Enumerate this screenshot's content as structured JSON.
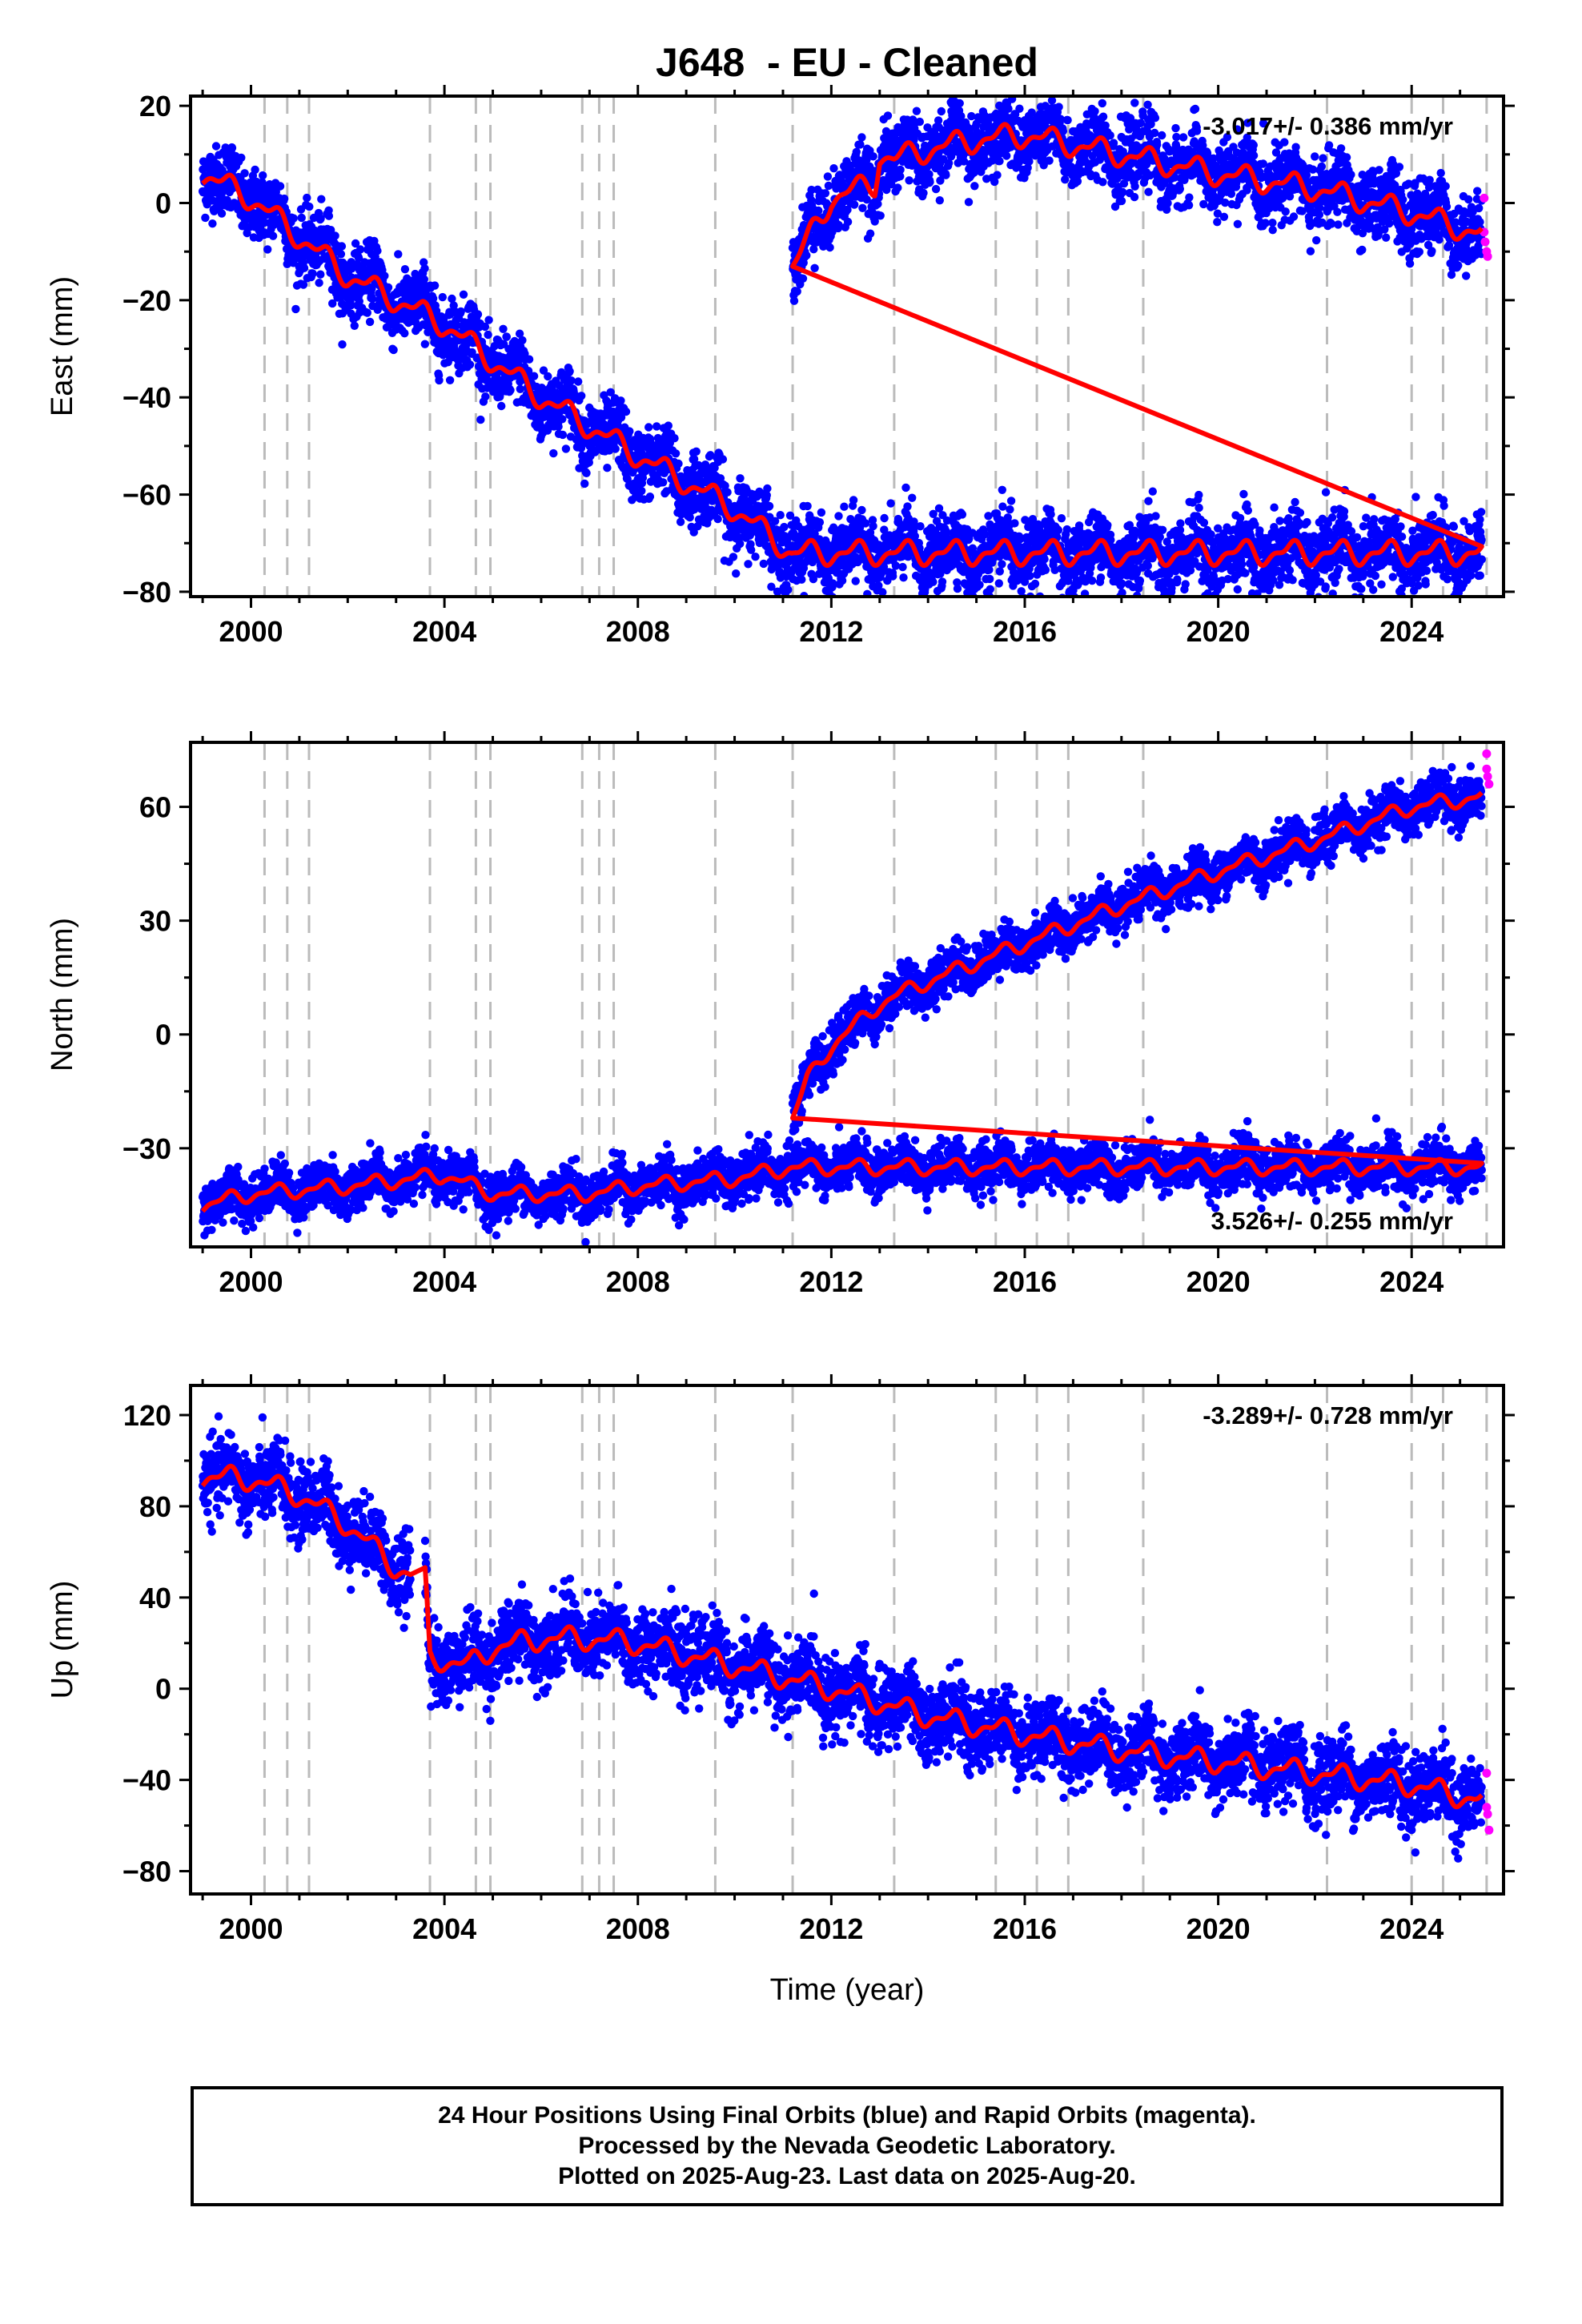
{
  "title": "J648  - EU - Cleaned",
  "xlabel": "Time (year)",
  "footer": {
    "line1": "24 Hour Positions Using Final Orbits (blue) and Rapid Orbits (magenta).",
    "line2": "Processed by the Nevada Geodetic Laboratory.",
    "line3": "Plotted on 2025-Aug-23. Last data on 2025-Aug-20."
  },
  "colors": {
    "final": "#0000ff",
    "rapid": "#ff00ff",
    "model": "#ff0000",
    "event_lines": "#bbbbbb"
  },
  "chart_data": [
    {
      "type": "scatter",
      "ylabel": "East (mm)",
      "rate": "-3.017+/- 0.386 mm/yr",
      "rate_position": "top-right",
      "xlim": [
        1998.75,
        2025.9
      ],
      "ylim": [
        -81,
        22
      ],
      "xticks": [
        2000,
        2004,
        2008,
        2012,
        2016,
        2020,
        2024
      ],
      "yticks": [
        -80,
        -60,
        -40,
        -20,
        0,
        20
      ],
      "scatter_spread_mm": 3.5,
      "series": [
        {
          "name": "Final Orbits (blue)",
          "x_start": 1999.0,
          "x_end": 2025.45,
          "model_knots": [
            [
              1999.0,
              6
            ],
            [
              2000.0,
              1
            ],
            [
              2002.0,
              -15
            ],
            [
              2004.0,
              -25
            ],
            [
              2006.0,
              -40
            ],
            [
              2008.0,
              -52
            ],
            [
              2010.0,
              -63
            ],
            [
              2011.18,
              -72
            ]
          ]
        },
        {
          "name": "Final Orbits (blue)",
          "x_start": 2011.2,
          "x_end": 2025.45,
          "model_knots": [
            [
              2011.2,
              -13
            ],
            [
              2011.5,
              -8
            ],
            [
              2012.0,
              1
            ],
            [
              2012.9,
              4
            ],
            [
              2013.0,
              10
            ],
            [
              2013.3,
              9
            ],
            [
              2014.0,
              11
            ],
            [
              2015.0,
              13
            ],
            [
              2016.0,
              14
            ],
            [
              2018.0,
              10
            ],
            [
              2020.0,
              6
            ],
            [
              2022.0,
              3
            ],
            [
              2024.0,
              -2
            ],
            [
              2025.6,
              -7
            ]
          ]
        },
        {
          "name": "Rapid Orbits (magenta)",
          "points": [
            [
              2025.5,
              1
            ],
            [
              2025.5,
              -6
            ],
            [
              2025.52,
              -8
            ],
            [
              2025.55,
              -10
            ],
            [
              2025.57,
              -11
            ]
          ]
        }
      ],
      "steps_model": [
        [
          2011.18,
          -72
        ],
        [
          2011.2,
          -13
        ]
      ],
      "seasonal_amplitude_mm": 2.5
    },
    {
      "type": "scatter",
      "ylabel": "North (mm)",
      "rate": "3.526+/- 0.255 mm/yr",
      "rate_position": "bottom-right",
      "xlim": [
        1998.75,
        2025.9
      ],
      "ylim": [
        -56,
        77
      ],
      "xticks": [
        2000,
        2004,
        2008,
        2012,
        2016,
        2020,
        2024
      ],
      "yticks": [
        -30,
        0,
        30,
        60
      ],
      "scatter_spread_mm": 3.0,
      "series": [
        {
          "name": "Final Orbits (blue)",
          "x_start": 1999.0,
          "x_end": 2025.45,
          "model_knots": [
            [
              1999.0,
              -45
            ],
            [
              2000.0,
              -42
            ],
            [
              2002.0,
              -40
            ],
            [
              2004.0,
              -37
            ],
            [
              2005.0,
              -42
            ],
            [
              2007.0,
              -42
            ],
            [
              2008.0,
              -40
            ],
            [
              2010.0,
              -38
            ],
            [
              2011.18,
              -35
            ]
          ]
        },
        {
          "name": "Final Orbits (blue)",
          "x_start": 2011.2,
          "x_end": 2025.45,
          "model_knots": [
            [
              2011.2,
              -22
            ],
            [
              2011.5,
              -12
            ],
            [
              2012.0,
              -3
            ],
            [
              2013.0,
              8
            ],
            [
              2013.3,
              10
            ],
            [
              2014.0,
              14
            ],
            [
              2016.0,
              24
            ],
            [
              2018.0,
              34
            ],
            [
              2020.0,
              43
            ],
            [
              2022.0,
              51
            ],
            [
              2024.0,
              60
            ],
            [
              2025.6,
              63
            ]
          ]
        },
        {
          "name": "Rapid Orbits (magenta)",
          "points": [
            [
              2025.55,
              74
            ],
            [
              2025.55,
              70
            ],
            [
              2025.57,
              68
            ],
            [
              2025.6,
              66
            ]
          ]
        }
      ],
      "steps_model": [
        [
          2011.18,
          -35
        ],
        [
          2011.2,
          -22
        ]
      ],
      "seasonal_amplitude_mm": 2.0
    },
    {
      "type": "scatter",
      "ylabel": "Up (mm)",
      "rate": "-3.289+/- 0.728 mm/yr",
      "rate_position": "top-right",
      "xlim": [
        1998.75,
        2025.9
      ],
      "ylim": [
        -90,
        133
      ],
      "xticks": [
        2000,
        2004,
        2008,
        2012,
        2016,
        2020,
        2024
      ],
      "yticks": [
        -80,
        -40,
        0,
        40,
        80,
        120
      ],
      "scatter_spread_mm": 8.0,
      "series": [
        {
          "name": "Final Orbits (blue)",
          "x_start": 1999.0,
          "x_end": 2003.3,
          "model_knots": [
            [
              1999.0,
              93
            ],
            [
              2000.0,
              92
            ],
            [
              2001.0,
              85
            ],
            [
              2002.0,
              72
            ],
            [
              2003.0,
              53
            ],
            [
              2003.3,
              50
            ]
          ]
        },
        {
          "name": "Final Orbits (blue)",
          "x_start": 2003.6,
          "x_end": 2025.45,
          "model_knots": [
            [
              2003.6,
              48
            ],
            [
              2003.7,
              14
            ],
            [
              2004.5,
              10
            ],
            [
              2005.0,
              18
            ],
            [
              2006.0,
              22
            ],
            [
              2007.0,
              22
            ],
            [
              2008.0,
              20
            ],
            [
              2010.0,
              10
            ],
            [
              2012.0,
              0
            ],
            [
              2014.0,
              -12
            ],
            [
              2016.0,
              -20
            ],
            [
              2018.0,
              -27
            ],
            [
              2020.0,
              -32
            ],
            [
              2022.0,
              -37
            ],
            [
              2024.0,
              -42
            ],
            [
              2025.6,
              -50
            ]
          ]
        },
        {
          "name": "Rapid Orbits (magenta)",
          "points": [
            [
              2025.55,
              -37
            ],
            [
              2025.55,
              -52
            ],
            [
              2025.57,
              -55
            ],
            [
              2025.6,
              -62
            ]
          ]
        }
      ],
      "steps_model": [
        [
          2003.6,
          48
        ],
        [
          2003.7,
          14
        ]
      ],
      "seasonal_amplitude_mm": 5.0
    }
  ],
  "event_lines": [
    2000.28,
    2000.75,
    2001.2,
    2003.7,
    2004.65,
    2004.95,
    2006.85,
    2007.2,
    2007.5,
    2009.6,
    2011.2,
    2013.3,
    2015.4,
    2016.25,
    2016.9,
    2018.45,
    2022.25,
    2024.0,
    2024.65,
    2025.55
  ]
}
